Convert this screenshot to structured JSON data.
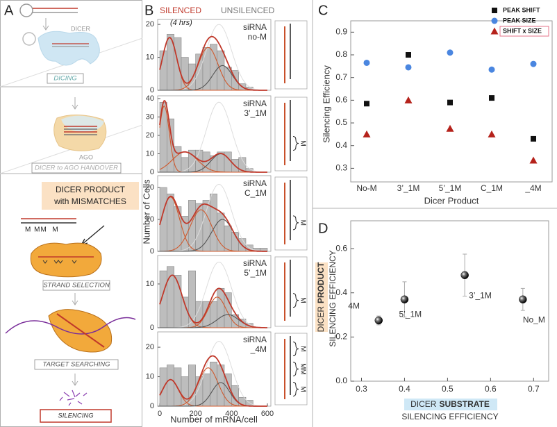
{
  "panel_a": {
    "label": "A",
    "dicer": "DICER",
    "dicing": "DICING",
    "ago": "AGO",
    "handover": "DICER to AGO HANDOVER",
    "product_line1": "DICER PRODUCT",
    "product_line2": "with MISMATCHES",
    "mismatch_label": "M MM  M",
    "strand_selection": "STRAND SELECTION",
    "target_searching": "TARGET SEARCHING",
    "silencing": "SILENCING"
  },
  "panel_b": {
    "label": "B",
    "silenced": "SILENCED",
    "note": "(4 hrs)",
    "unsilenced": "UNSILENCED",
    "ylabel": "Number of Cells",
    "xlabel": "Number of mRNA/cell"
  },
  "chart_data": [
    {
      "type": "histogram",
      "title": "siRNA",
      "subtitle": "no-M",
      "bar_color": "#bdbdbd",
      "bins": [
        0,
        40,
        80,
        120,
        160,
        200,
        240,
        280,
        320,
        360,
        400,
        440,
        480,
        520,
        560,
        600
      ],
      "values": [
        12,
        17,
        16,
        10,
        8,
        11,
        13,
        14,
        12,
        7,
        6,
        2,
        1,
        0,
        0
      ],
      "xlim": [
        0,
        600
      ],
      "ylim": [
        0,
        21.5
      ],
      "yticks": [
        0,
        10,
        20
      ],
      "components": [
        {
          "color": "#cf5a2e",
          "amplitude": 16,
          "mean": 55,
          "sd": 40
        },
        {
          "color": "#cf5a2e",
          "amplitude": 13,
          "mean": 270,
          "sd": 55
        },
        {
          "color": "#555555",
          "amplitude": 7.5,
          "mean": 350,
          "sd": 55
        }
      ],
      "total_color": "#c0392b",
      "reference": {
        "color": "#dddddd",
        "amplitude": 20,
        "mean": 330,
        "sd": 70
      }
    },
    {
      "type": "histogram",
      "title": "siRNA",
      "subtitle": "3’_1M",
      "bar_color": "#bdbdbd",
      "bins": [
        0,
        40,
        80,
        120,
        160,
        200,
        240,
        280,
        320,
        360,
        400,
        440,
        480,
        520,
        560,
        600
      ],
      "values": [
        38,
        29,
        14,
        8,
        12,
        12,
        11,
        9,
        11,
        11,
        7,
        8,
        2,
        0,
        0
      ],
      "xlim": [
        0,
        600
      ],
      "ylim": [
        0,
        41.5
      ],
      "yticks": [
        0,
        10,
        20,
        30,
        40
      ],
      "components": [
        {
          "color": "#cf5a2e",
          "amplitude": 36,
          "mean": 25,
          "sd": 28
        },
        {
          "color": "#cf5a2e",
          "amplitude": 11,
          "mean": 140,
          "sd": 70
        },
        {
          "color": "#555555",
          "amplitude": 10,
          "mean": 340,
          "sd": 55
        }
      ],
      "total_color": "#c0392b",
      "reference": {
        "color": "#dddddd",
        "amplitude": 38,
        "mean": 330,
        "sd": 70
      },
      "schematic_marks": [
        "M"
      ]
    },
    {
      "type": "histogram",
      "title": "siRNA",
      "subtitle": "C_1M",
      "bar_color": "#bdbdbd",
      "bins": [
        0,
        40,
        80,
        120,
        160,
        200,
        240,
        280,
        320,
        360,
        400,
        440,
        480,
        520,
        560,
        600
      ],
      "values": [
        20,
        18,
        14,
        11,
        16,
        15,
        16,
        18,
        12,
        8,
        6,
        4,
        2,
        1,
        1
      ],
      "xlim": [
        0,
        600
      ],
      "ylim": [
        0,
        23.7
      ],
      "yticks": [
        0,
        10,
        20
      ],
      "components": [
        {
          "color": "#cf5a2e",
          "amplitude": 17,
          "mean": 60,
          "sd": 50
        },
        {
          "color": "#cf5a2e",
          "amplitude": 13,
          "mean": 230,
          "sd": 60
        },
        {
          "color": "#555555",
          "amplitude": 10,
          "mean": 350,
          "sd": 60
        }
      ],
      "total_color": "#c0392b",
      "reference": {
        "color": "#dddddd",
        "amplitude": 21,
        "mean": 330,
        "sd": 70
      },
      "schematic_marks": [
        "M"
      ]
    },
    {
      "type": "histogram",
      "title": "siRNA",
      "subtitle": "5’_1M",
      "bar_color": "#bdbdbd",
      "bins": [
        0,
        40,
        80,
        120,
        160,
        200,
        240,
        280,
        320,
        360,
        400,
        440,
        480,
        520,
        560,
        600
      ],
      "values": [
        13,
        14,
        12,
        7,
        13,
        6,
        6,
        6,
        9,
        8,
        3,
        2,
        1,
        0,
        0
      ],
      "xlim": [
        0,
        600
      ],
      "ylim": [
        0,
        16.5
      ],
      "yticks": [
        0,
        10
      ],
      "components": [
        {
          "color": "#cf5a2e",
          "amplitude": 12,
          "mean": 70,
          "sd": 55
        },
        {
          "color": "#cf5a2e",
          "amplitude": 7,
          "mean": 320,
          "sd": 50
        },
        {
          "color": "#555555",
          "amplitude": 3,
          "mean": 380,
          "sd": 60
        }
      ],
      "total_color": "#c0392b",
      "reference": {
        "color": "#dddddd",
        "amplitude": 15,
        "mean": 330,
        "sd": 70
      },
      "schematic_marks": [
        "M"
      ]
    },
    {
      "type": "histogram",
      "title": "siRNA",
      "subtitle": "_4M",
      "bar_color": "#bdbdbd",
      "bins": [
        0,
        40,
        80,
        120,
        160,
        200,
        240,
        280,
        320,
        360,
        400,
        440,
        480,
        520,
        560,
        600
      ],
      "values": [
        13,
        14,
        13,
        10,
        14,
        10,
        11,
        15,
        14,
        11,
        7,
        3,
        2,
        0,
        0
      ],
      "xlim": [
        0,
        600
      ],
      "xticks": [
        0,
        200,
        400,
        600
      ],
      "ylim": [
        0,
        25.2
      ],
      "yticks": [
        0,
        10,
        20
      ],
      "components": [
        {
          "color": "#cf5a2e",
          "amplitude": 9,
          "mean": 60,
          "sd": 45
        },
        {
          "color": "#cf5a2e",
          "amplitude": 13,
          "mean": 270,
          "sd": 55
        },
        {
          "color": "#555555",
          "amplitude": 8,
          "mean": 340,
          "sd": 50
        }
      ],
      "total_color": "#c0392b",
      "reference": {
        "color": "#dddddd",
        "amplitude": 22,
        "mean": 330,
        "sd": 70
      },
      "schematic_marks": [
        "M",
        "MM",
        "M"
      ]
    },
    {
      "type": "scatter",
      "label": "C",
      "ylabel": "Silencing Efficiency",
      "xlabel": "Dicer Product",
      "categories": [
        "No-M",
        "3’_1M",
        "5’_1M",
        "C_1M",
        "_4M"
      ],
      "ylim": [
        0.24,
        0.95
      ],
      "yticks": [
        0.3,
        0.4,
        0.5,
        0.6,
        0.7,
        0.8,
        0.9
      ],
      "legend": "upper right",
      "series": [
        {
          "name": "PEAK SHIFT",
          "color": "#111111",
          "marker": "square",
          "values": [
            0.585,
            0.8,
            0.59,
            0.61,
            0.43
          ]
        },
        {
          "name": "PEAK SIZE",
          "color": "#4a86e0",
          "marker": "circle",
          "values": [
            0.765,
            0.745,
            0.81,
            0.735,
            0.76
          ]
        },
        {
          "name": "SHIFT x SIZE",
          "color": "#b5221b",
          "marker": "triangle",
          "label_box": "#e5738a",
          "values": [
            0.45,
            0.6,
            0.475,
            0.45,
            0.335
          ]
        }
      ]
    },
    {
      "type": "errorbar",
      "label": "D",
      "ylabel_prefix": "DICER",
      "ylabel_emphasis": "PRODUCT",
      "ylabel": "SILENCING EFFICIENCY",
      "ylabel_highlight": "#fbe1c4",
      "xlabel_prefix": "DICER",
      "xlabel_emphasis": "SUBSTRATE",
      "xlabel": "SILENCING EFFICIENCY",
      "xlabel_highlight": "#cfe8f6",
      "x": [
        0.34,
        0.4,
        0.54,
        0.675
      ],
      "values": [
        0.275,
        0.37,
        0.48,
        0.37
      ],
      "errors": [
        0.02,
        0.08,
        0.095,
        0.05
      ],
      "point_labels": [
        "4M",
        "5’_1M",
        "3’_1M",
        "No_M"
      ],
      "color": "#111111",
      "error_color": "#aaaaaa",
      "xlim": [
        0.275,
        0.735
      ],
      "xticks": [
        0.3,
        0.4,
        0.5,
        0.6,
        0.7
      ],
      "ylim": [
        0,
        0.726
      ],
      "yticks": [
        {
          "value": 0,
          "label": "0.0"
        },
        0.2,
        0.4,
        0.6
      ]
    }
  ]
}
